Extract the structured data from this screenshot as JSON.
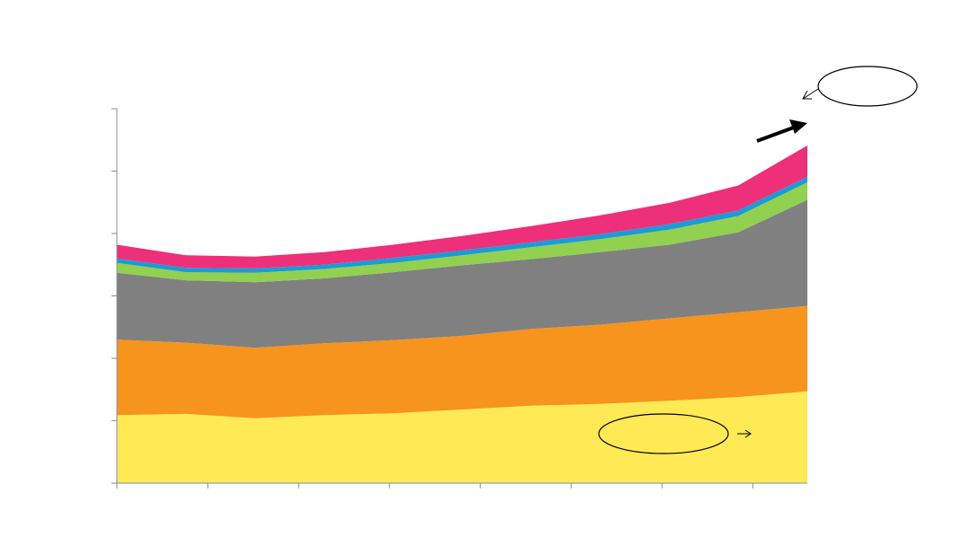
{
  "chart_data": {
    "type": "area",
    "stacked": true,
    "title": "",
    "xlabel": "",
    "ylabel": "",
    "x_range": [
      0,
      100
    ],
    "ylim": [
      0,
      6
    ],
    "x_ticks_count": 8,
    "y_ticks_count": 7,
    "grid": false,
    "legend": "none",
    "x": [
      0,
      10,
      20,
      30,
      40,
      50,
      60,
      70,
      80,
      90,
      100
    ],
    "series": [
      {
        "color": "#FFEA55",
        "values": [
          1.09,
          1.11,
          1.04,
          1.09,
          1.12,
          1.18,
          1.24,
          1.27,
          1.32,
          1.38,
          1.47
        ]
      },
      {
        "color": "#F7941D",
        "values": [
          1.21,
          1.14,
          1.13,
          1.15,
          1.17,
          1.18,
          1.23,
          1.27,
          1.32,
          1.36,
          1.37
        ]
      },
      {
        "color": "#808080",
        "values": [
          1.07,
          1.0,
          1.05,
          1.04,
          1.09,
          1.13,
          1.12,
          1.16,
          1.18,
          1.28,
          1.7
        ]
      },
      {
        "color": "#92D050",
        "values": [
          0.16,
          0.13,
          0.15,
          0.15,
          0.15,
          0.16,
          0.19,
          0.21,
          0.24,
          0.26,
          0.28
        ]
      },
      {
        "color": "#1B9BD7",
        "values": [
          0.07,
          0.07,
          0.07,
          0.07,
          0.08,
          0.08,
          0.08,
          0.08,
          0.09,
          0.09,
          0.09
        ]
      },
      {
        "color": "#EE2F7A",
        "values": [
          0.22,
          0.2,
          0.19,
          0.2,
          0.21,
          0.23,
          0.26,
          0.3,
          0.34,
          0.4,
          0.5
        ]
      }
    ],
    "annotations": [
      {
        "kind": "ellipse-callout-top-right"
      },
      {
        "kind": "arrow-up-right"
      },
      {
        "kind": "ellipse-callout-bottom"
      }
    ]
  }
}
